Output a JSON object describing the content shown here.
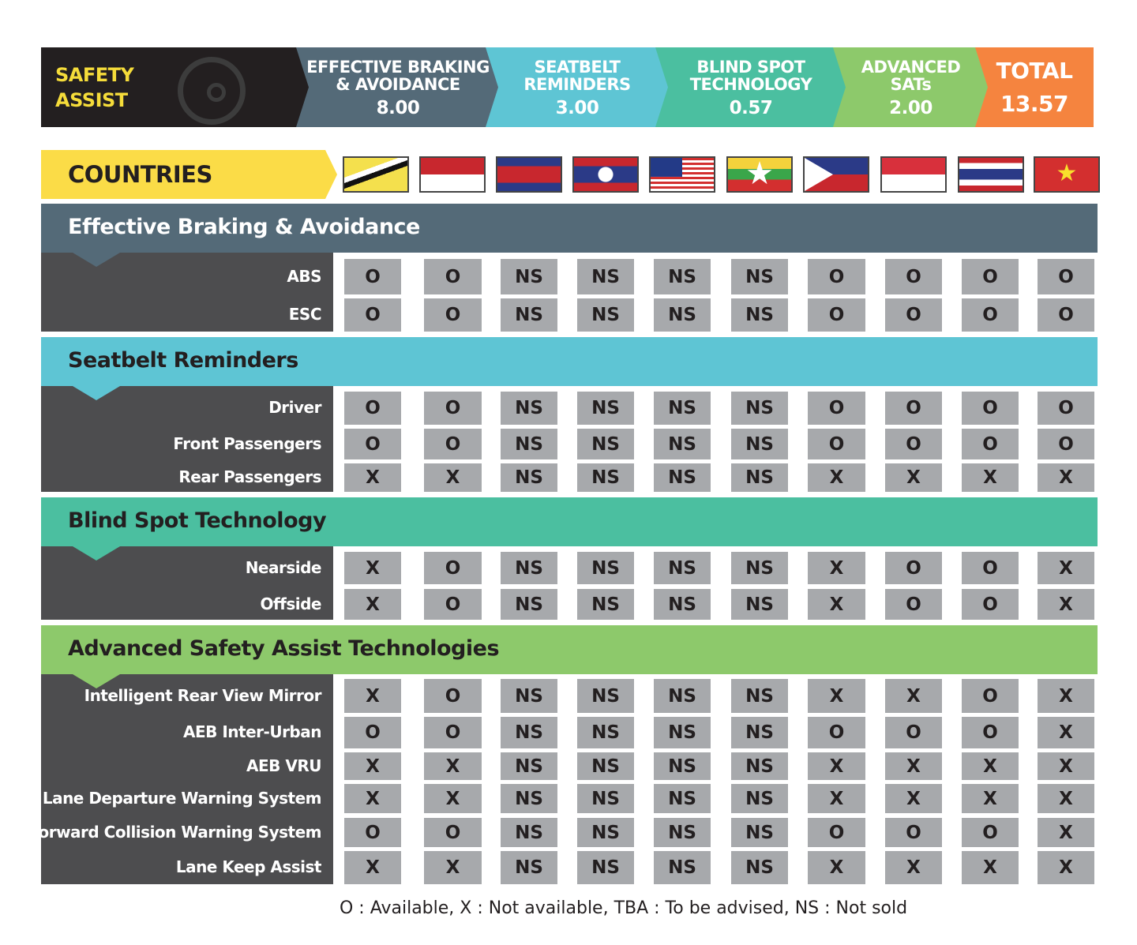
{
  "header": {
    "title_line1": "SAFETY",
    "title_line2": "ASSIST",
    "icon": "steering-wheel-hands-icon",
    "segments": [
      {
        "line1": "EFFECTIVE BRAKING",
        "line2": "& AVOIDANCE",
        "score": "8.00",
        "color": "#546a78"
      },
      {
        "line1": "SEATBELT",
        "line2": "REMINDERS",
        "score": "3.00",
        "color": "#5ec5d4"
      },
      {
        "line1": "BLIND SPOT",
        "line2": "TECHNOLOGY",
        "score": "0.57",
        "color": "#4bbfa0"
      },
      {
        "line1": "ADVANCED",
        "line2": "SATs",
        "score": "2.00",
        "color": "#8dc96b"
      },
      {
        "line1": "TOTAL",
        "line2": "",
        "score": "13.57",
        "color": "#f5843f"
      }
    ]
  },
  "countries_label": "COUNTRIES",
  "countries": [
    "brunei-flag",
    "indonesia-flag",
    "cambodia-flag",
    "laos-flag",
    "malaysia-flag",
    "myanmar-flag",
    "philippines-flag",
    "singapore-flag",
    "thailand-flag",
    "vietnam-flag"
  ],
  "sections": [
    {
      "title": "Effective Braking & Avoidance",
      "color": "#546a78",
      "rows": [
        {
          "label": "ABS",
          "values": [
            "O",
            "O",
            "NS",
            "NS",
            "NS",
            "NS",
            "O",
            "O",
            "O",
            "O"
          ]
        },
        {
          "label": "ESC",
          "values": [
            "O",
            "O",
            "NS",
            "NS",
            "NS",
            "NS",
            "O",
            "O",
            "O",
            "O"
          ]
        }
      ]
    },
    {
      "title": "Seatbelt Reminders",
      "color": "#5ec5d4",
      "rows": [
        {
          "label": "Driver",
          "values": [
            "O",
            "O",
            "NS",
            "NS",
            "NS",
            "NS",
            "O",
            "O",
            "O",
            "O"
          ]
        },
        {
          "label": "Front Passengers",
          "values": [
            "O",
            "O",
            "NS",
            "NS",
            "NS",
            "NS",
            "O",
            "O",
            "O",
            "O"
          ]
        },
        {
          "label": "Rear Passengers",
          "values": [
            "X",
            "X",
            "NS",
            "NS",
            "NS",
            "NS",
            "X",
            "X",
            "X",
            "X"
          ]
        }
      ]
    },
    {
      "title": "Blind Spot Technology",
      "color": "#4bbfa0",
      "rows": [
        {
          "label": "Nearside",
          "values": [
            "X",
            "O",
            "NS",
            "NS",
            "NS",
            "NS",
            "X",
            "O",
            "O",
            "X"
          ]
        },
        {
          "label": "Offside",
          "values": [
            "X",
            "O",
            "NS",
            "NS",
            "NS",
            "NS",
            "X",
            "O",
            "O",
            "X"
          ]
        }
      ]
    },
    {
      "title": "Advanced Safety Assist Technologies",
      "color": "#8dc96b",
      "rows": [
        {
          "label": "Intelligent Rear View Mirror",
          "values": [
            "X",
            "O",
            "NS",
            "NS",
            "NS",
            "NS",
            "X",
            "X",
            "O",
            "X"
          ]
        },
        {
          "label": "AEB Inter-Urban",
          "values": [
            "O",
            "O",
            "NS",
            "NS",
            "NS",
            "NS",
            "O",
            "O",
            "O",
            "X"
          ]
        },
        {
          "label": "AEB VRU",
          "values": [
            "X",
            "X",
            "NS",
            "NS",
            "NS",
            "NS",
            "X",
            "X",
            "X",
            "X"
          ]
        },
        {
          "label": "Lane Departure Warning System",
          "values": [
            "X",
            "X",
            "NS",
            "NS",
            "NS",
            "NS",
            "X",
            "X",
            "X",
            "X"
          ]
        },
        {
          "label": "Forward Collision Warning System",
          "values": [
            "O",
            "O",
            "NS",
            "NS",
            "NS",
            "NS",
            "O",
            "O",
            "O",
            "X"
          ]
        },
        {
          "label": "Lane Keep Assist",
          "values": [
            "X",
            "X",
            "NS",
            "NS",
            "NS",
            "NS",
            "X",
            "X",
            "X",
            "X"
          ]
        }
      ]
    }
  ],
  "legend": "O : Available, X : Not available, TBA : To be advised, NS : Not sold"
}
